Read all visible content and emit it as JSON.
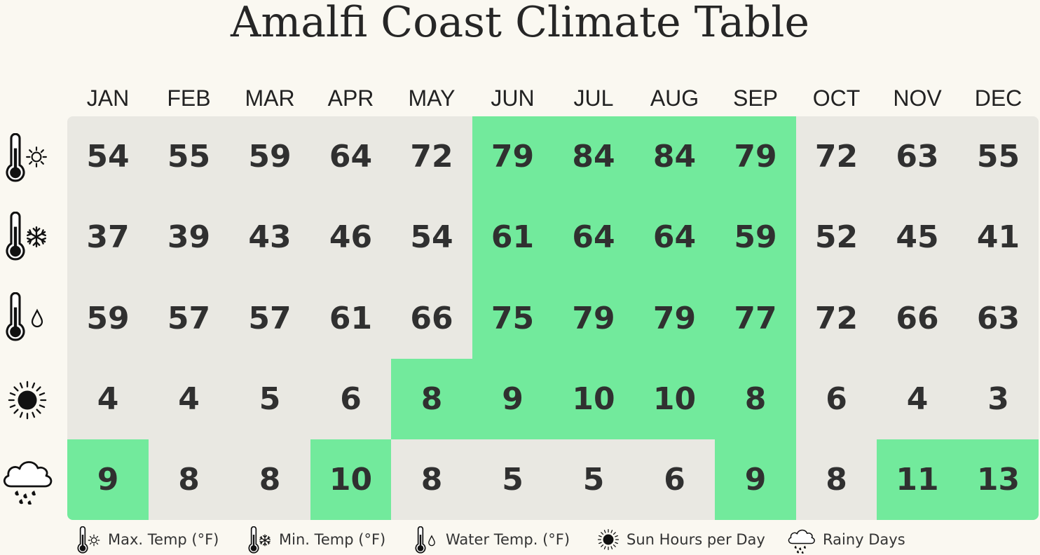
{
  "title": "Amalfi Coast Climate Table",
  "months": [
    "JAN",
    "FEB",
    "MAR",
    "APR",
    "MAY",
    "JUN",
    "JUL",
    "AUG",
    "SEP",
    "OCT",
    "NOV",
    "DEC"
  ],
  "legend": {
    "max_temp": "Max. Temp (°F)",
    "min_temp": "Min. Temp (°F)",
    "water_temp": "Water Temp. (°F)",
    "sun_hours": "Sun Hours per Day",
    "rainy_days": "Rainy Days"
  },
  "colors": {
    "highlight": "#72ea9c",
    "base": "#e9e8e2",
    "background": "#faf8f1"
  },
  "chart_data": {
    "type": "table",
    "title": "Amalfi Coast Climate Table",
    "categories": [
      "JAN",
      "FEB",
      "MAR",
      "APR",
      "MAY",
      "JUN",
      "JUL",
      "AUG",
      "SEP",
      "OCT",
      "NOV",
      "DEC"
    ],
    "series": [
      {
        "name": "Max. Temp (°F)",
        "icon": "thermometer-sun-icon",
        "values": [
          54,
          55,
          59,
          64,
          72,
          79,
          84,
          84,
          79,
          72,
          63,
          55
        ],
        "highlighted": [
          false,
          false,
          false,
          false,
          false,
          true,
          true,
          true,
          true,
          false,
          false,
          false
        ]
      },
      {
        "name": "Min. Temp (°F)",
        "icon": "thermometer-snowflake-icon",
        "values": [
          37,
          39,
          43,
          46,
          54,
          61,
          64,
          64,
          59,
          52,
          45,
          41
        ],
        "highlighted": [
          false,
          false,
          false,
          false,
          false,
          true,
          true,
          true,
          true,
          false,
          false,
          false
        ]
      },
      {
        "name": "Water Temp. (°F)",
        "icon": "thermometer-drop-icon",
        "values": [
          59,
          57,
          57,
          61,
          66,
          75,
          79,
          79,
          77,
          72,
          66,
          63
        ],
        "highlighted": [
          false,
          false,
          false,
          false,
          false,
          true,
          true,
          true,
          true,
          false,
          false,
          false
        ]
      },
      {
        "name": "Sun Hours per Day",
        "icon": "sun-icon",
        "values": [
          4,
          4,
          5,
          6,
          8,
          9,
          10,
          10,
          8,
          6,
          4,
          3
        ],
        "highlighted": [
          false,
          false,
          false,
          false,
          true,
          true,
          true,
          true,
          true,
          false,
          false,
          false
        ]
      },
      {
        "name": "Rainy Days",
        "icon": "rain-cloud-icon",
        "values": [
          9,
          8,
          8,
          10,
          8,
          5,
          5,
          6,
          9,
          8,
          11,
          13
        ],
        "highlighted": [
          true,
          false,
          false,
          true,
          false,
          false,
          false,
          false,
          true,
          false,
          true,
          true
        ]
      }
    ]
  }
}
